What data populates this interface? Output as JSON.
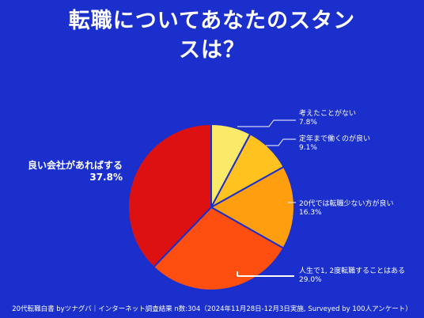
{
  "title_lines": [
    "転職についてあなたのスタン",
    "スは？"
  ],
  "footer": "20代転職白書 byツナグバ｜インターネット調査結果 n数:304（2024年11月28日-12月3日実施, Surveyed by 100人アンケート）",
  "colors": {
    "background": "#1a2fcb",
    "slices": [
      "#fbe96a",
      "#ffc21f",
      "#ff9f0f",
      "#ff4f10",
      "#dd1111"
    ]
  },
  "chart_data": {
    "type": "pie",
    "start": "12 o'clock",
    "direction": "clockwise",
    "slices": [
      {
        "label": "考えたことがない",
        "value": 7.8,
        "value_label": "7.8%"
      },
      {
        "label": "定年まで働くのが良い",
        "value": 9.1,
        "value_label": "9.1%"
      },
      {
        "label": "20代では転職少ない方が良い",
        "value": 16.3,
        "value_label": "16.3%"
      },
      {
        "label": "人生で1, 2度転職することはある",
        "value": 29.0,
        "value_label": "29.0%"
      },
      {
        "label": "良い会社があればする",
        "value": 37.8,
        "value_label": "37.8%"
      }
    ]
  }
}
